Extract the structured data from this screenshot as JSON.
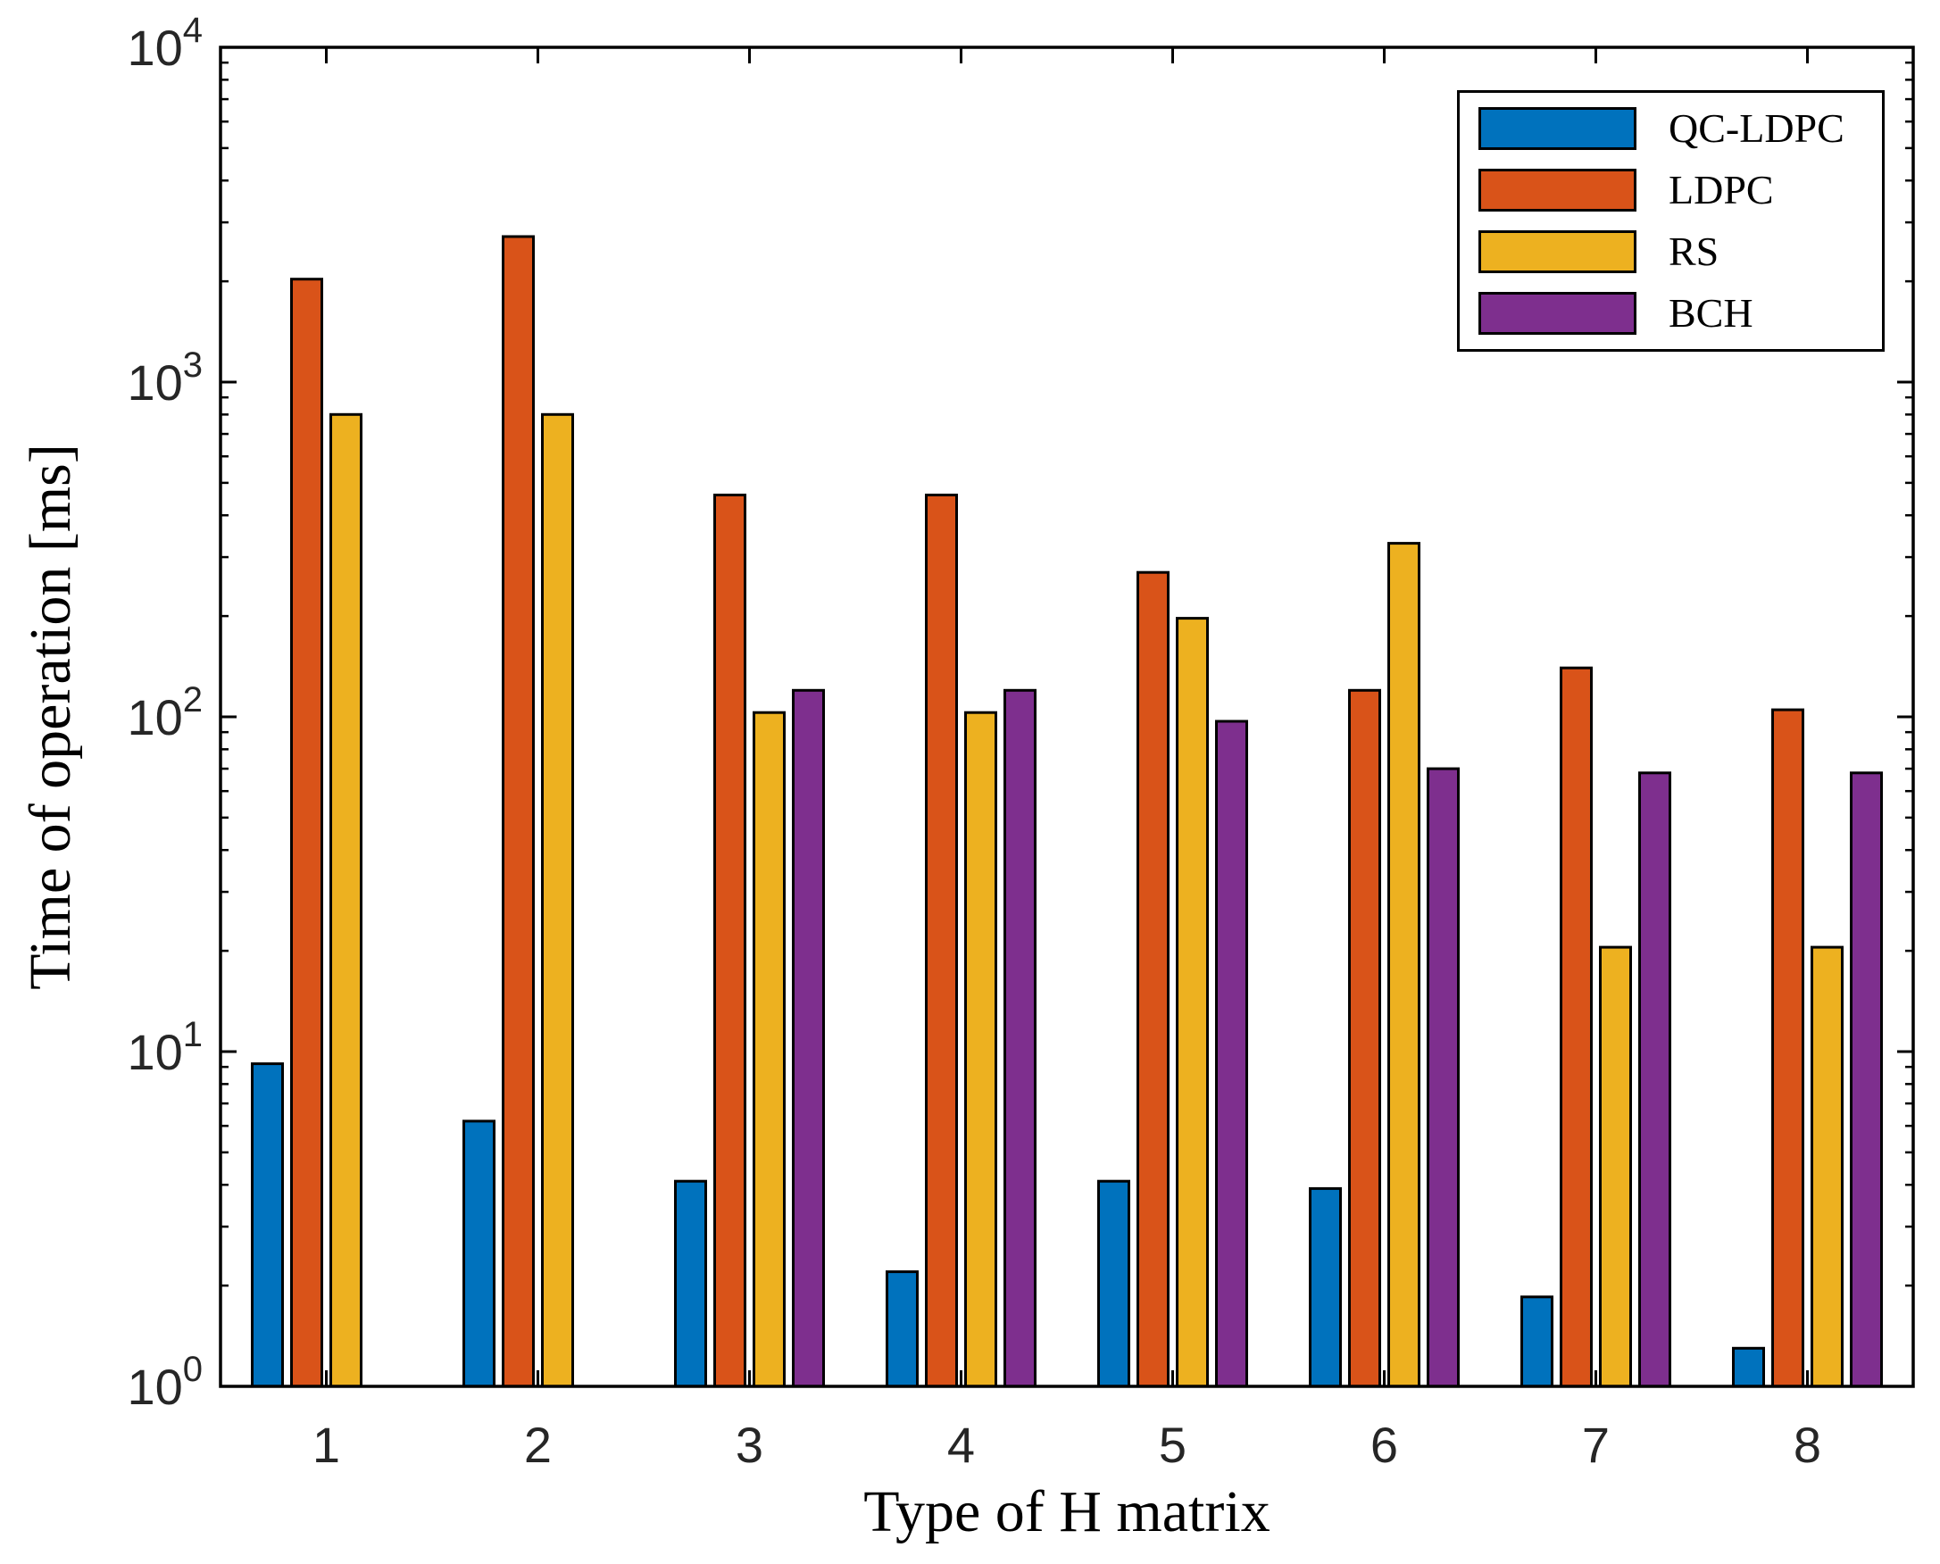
{
  "figure": {
    "background": "#ffffff",
    "axes_edge_color": "#000000",
    "tick_label_color": "#262626"
  },
  "chart_data": {
    "type": "bar",
    "title": "",
    "xlabel": "Type of H matrix",
    "ylabel": "Time of operation [ms]",
    "y_scale": "log10",
    "ylim": [
      1,
      10000
    ],
    "grid": false,
    "y_tick_exponents": [
      "0",
      "1",
      "2",
      "3",
      "4"
    ],
    "categories": [
      "1",
      "2",
      "3",
      "4",
      "5",
      "6",
      "7",
      "8"
    ],
    "bar_edge_color": "#000000",
    "series": [
      {
        "name": "QC-LDPC",
        "color": "#0072BD",
        "values": [
          9.2,
          6.2,
          4.1,
          2.2,
          4.1,
          3.9,
          1.85,
          1.3
        ]
      },
      {
        "name": "LDPC",
        "color": "#D95319",
        "values": [
          2030,
          2720,
          460,
          460,
          270,
          120,
          140,
          105
        ]
      },
      {
        "name": "RS",
        "color": "#EDB120",
        "values": [
          800,
          800,
          103,
          103,
          197,
          330,
          20.5,
          20.5
        ]
      },
      {
        "name": "BCH",
        "color": "#7E2F8E",
        "values": [
          null,
          null,
          120,
          120,
          97,
          70,
          68,
          68
        ]
      }
    ],
    "legend": {
      "position": "top-right"
    }
  }
}
